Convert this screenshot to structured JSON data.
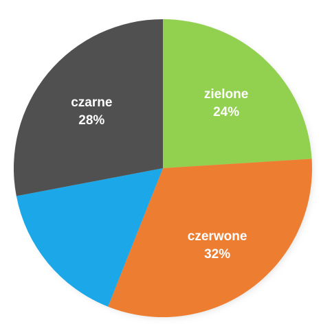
{
  "chart_data": {
    "type": "pie",
    "start": "12 o'clock",
    "direction": "clockwise",
    "slices": [
      {
        "label": "zielone",
        "value": 24,
        "value_label": "24%",
        "color": "#92D050"
      },
      {
        "label": "czerwone",
        "value": 32,
        "value_label": "32%",
        "color": "#ED7D31"
      },
      {
        "label": "",
        "value": 16,
        "value_label": "",
        "color": "#1CA8E8"
      },
      {
        "label": "czarne",
        "value": 28,
        "value_label": "28%",
        "color": "#505050"
      }
    ]
  }
}
